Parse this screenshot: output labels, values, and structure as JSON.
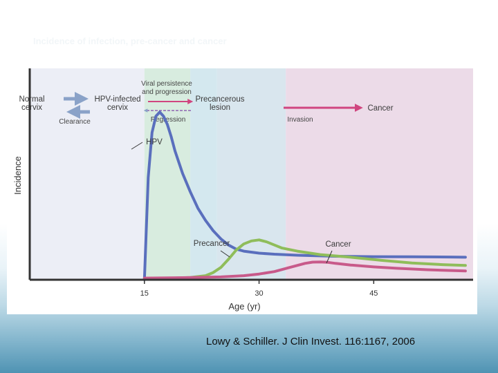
{
  "slide": {
    "title": "Incidence of infection, pre-cancer and cancer",
    "citation": "Lowy & Schiller. J Clin Invest. 116:1167, 2006"
  },
  "colors": {
    "hpv": "#5a6fbd",
    "precancer": "#8fbd5a",
    "cancer": "#c85a8a",
    "band_normal": "#eceef6",
    "band_hpv": "#d8ecdf",
    "band_persist": "#d4e8ef",
    "band_precancer": "#d9e6ee",
    "band_cancer": "#ecdbe8",
    "arrow_gray": "#8aa2c8",
    "arrow_pink": "#d0457f"
  },
  "chart_data": {
    "type": "line",
    "xlabel": "Age (yr)",
    "ylabel": "Incidence",
    "xlim": [
      0,
      58
    ],
    "ylim": [
      0,
      100
    ],
    "xticks": [
      "15",
      "30",
      "45"
    ],
    "xtick_values": [
      15,
      30,
      45
    ],
    "stages": [
      {
        "key": "normal",
        "label": "Normal\ncervix",
        "x_start": 0,
        "x_end": 15
      },
      {
        "key": "hpv",
        "label": "HPV-infected\ncervix",
        "x_start": 15,
        "x_end": 21
      },
      {
        "key": "persist",
        "label": "",
        "x_start": 21,
        "x_end": 24.5
      },
      {
        "key": "precancer",
        "label": "Precancerous\nlesion",
        "x_start": 24.5,
        "x_end": 33.5
      },
      {
        "key": "cancer",
        "label": "Cancer",
        "x_start": 33.5,
        "x_end": 58
      }
    ],
    "transitions": [
      {
        "label": "Viral persistence\nand progression"
      },
      {
        "label": "Clearance"
      },
      {
        "label": "Regression"
      },
      {
        "label": "Invasion"
      }
    ],
    "series": [
      {
        "name": "HPV",
        "x": [
          15,
          15.5,
          16,
          16.5,
          17,
          17.5,
          18,
          18.5,
          19,
          20,
          21,
          22,
          23,
          24,
          25,
          26,
          27,
          28,
          30,
          32,
          35,
          40,
          45,
          50,
          55,
          57
        ],
        "y": [
          0,
          50,
          72,
          80,
          82,
          80,
          76,
          70,
          63,
          52,
          43,
          35,
          29,
          24,
          20,
          17,
          15,
          14,
          13,
          12.5,
          12,
          11.5,
          11.3,
          11.2,
          11.1,
          11
        ]
      },
      {
        "name": "Precancer",
        "x": [
          15,
          17,
          19,
          21,
          23,
          24,
          25,
          26,
          27,
          28,
          29,
          30,
          31,
          32,
          33,
          35,
          38,
          42,
          46,
          50,
          54,
          57
        ],
        "y": [
          0.5,
          0.6,
          0.8,
          1.1,
          2,
          3.5,
          6,
          10,
          14.5,
          17.5,
          19,
          19.5,
          18.5,
          17,
          15.5,
          14,
          12.3,
          11,
          9.5,
          8.2,
          7.4,
          7
        ]
      },
      {
        "name": "Cancer",
        "x": [
          15,
          20,
          25,
          28,
          30,
          32,
          34,
          36,
          37,
          38,
          39,
          40,
          42,
          45,
          48,
          52,
          57
        ],
        "y": [
          0.8,
          1,
          1.4,
          2,
          2.8,
          4,
          6,
          8,
          8.6,
          8.7,
          8.5,
          8,
          7.2,
          6.3,
          5.6,
          4.9,
          4.3
        ]
      }
    ]
  }
}
